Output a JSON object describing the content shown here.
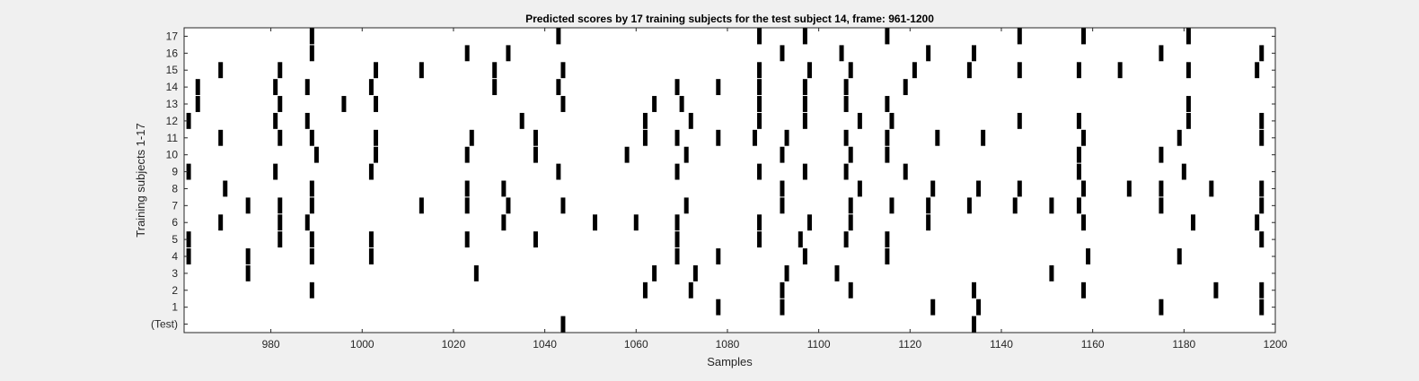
{
  "chart_data": {
    "type": "raster",
    "title": "Predicted scores by 17 training subjects for the test subject 14, frame: 961-1200",
    "xlabel": "Samples",
    "ylabel": "Training subjects 1-17",
    "xlim": [
      961,
      1200
    ],
    "x_ticks": [
      980,
      1000,
      1020,
      1040,
      1060,
      1080,
      1100,
      1120,
      1140,
      1160,
      1180,
      1200
    ],
    "x_tick_labels": [
      "980",
      "1000",
      "1020",
      "1040",
      "1060",
      "1080",
      "1100",
      "1120",
      "1140",
      "1160",
      "1180",
      "1200"
    ],
    "rows": [
      "(Test)",
      "1",
      "2",
      "3",
      "4",
      "5",
      "6",
      "7",
      "8",
      "9",
      "10",
      "11",
      "12",
      "13",
      "14",
      "15",
      "16",
      "17"
    ],
    "events": [
      [
        1044,
        1134
      ],
      [
        1078,
        1092,
        1125,
        1135,
        1175,
        1197
      ],
      [
        989,
        1062,
        1072,
        1092,
        1107,
        1134,
        1158,
        1187,
        1197
      ],
      [
        975,
        1025,
        1064,
        1073,
        1093,
        1104,
        1151
      ],
      [
        962,
        975,
        989,
        1002,
        1069,
        1078,
        1097,
        1115,
        1159,
        1179
      ],
      [
        962,
        982,
        989,
        1002,
        1023,
        1038,
        1069,
        1087,
        1096,
        1106,
        1115,
        1197
      ],
      [
        969,
        982,
        988,
        1031,
        1051,
        1060,
        1069,
        1087,
        1098,
        1107,
        1124,
        1158,
        1182,
        1196
      ],
      [
        975,
        982,
        989,
        1013,
        1023,
        1032,
        1044,
        1071,
        1092,
        1107,
        1116,
        1124,
        1133,
        1143,
        1151,
        1157,
        1175,
        1197
      ],
      [
        970,
        989,
        1023,
        1031,
        1092,
        1109,
        1125,
        1135,
        1144,
        1158,
        1168,
        1175,
        1186,
        1197
      ],
      [
        962,
        981,
        1002,
        1043,
        1069,
        1087,
        1097,
        1106,
        1119,
        1157,
        1180
      ],
      [
        990,
        1003,
        1023,
        1038,
        1058,
        1071,
        1092,
        1107,
        1115,
        1157,
        1175
      ],
      [
        969,
        982,
        989,
        1003,
        1024,
        1038,
        1062,
        1069,
        1078,
        1086,
        1093,
        1106,
        1115,
        1126,
        1136,
        1158,
        1179,
        1197
      ],
      [
        962,
        981,
        988,
        1035,
        1062,
        1072,
        1087,
        1097,
        1109,
        1116,
        1144,
        1157,
        1181,
        1197
      ],
      [
        964,
        982,
        996,
        1003,
        1044,
        1064,
        1070,
        1087,
        1097,
        1106,
        1115,
        1181
      ],
      [
        964,
        981,
        988,
        1002,
        1029,
        1043,
        1069,
        1078,
        1087,
        1097,
        1106,
        1119
      ],
      [
        969,
        982,
        1003,
        1013,
        1029,
        1044,
        1087,
        1098,
        1107,
        1121,
        1133,
        1144,
        1157,
        1166,
        1181,
        1196
      ],
      [
        989,
        1023,
        1032,
        1092,
        1105,
        1124,
        1134,
        1175,
        1197
      ],
      [
        989,
        1043,
        1087,
        1097,
        1115,
        1144,
        1158,
        1181
      ]
    ],
    "bar_color": "#000000",
    "background_color": "#ffffff",
    "figure_color": "#f0f0f0",
    "grid": false
  }
}
